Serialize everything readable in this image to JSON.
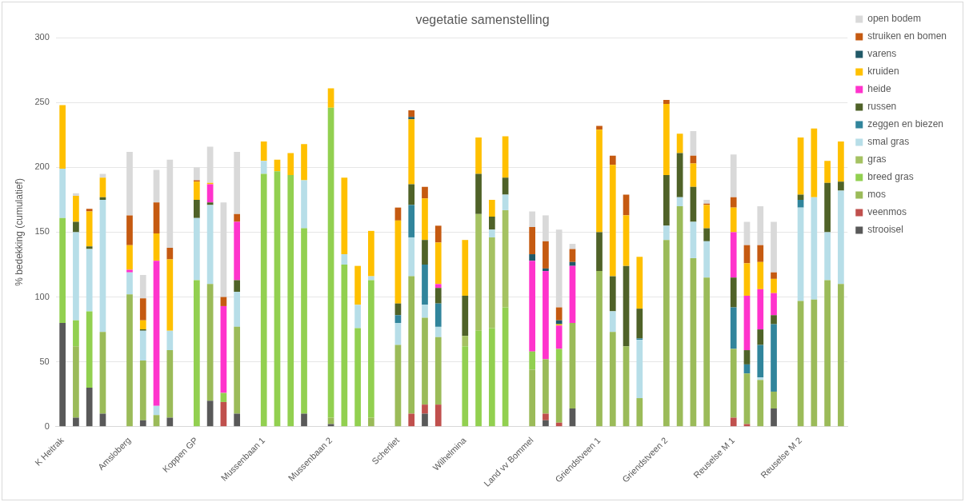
{
  "chart_data": {
    "type": "bar",
    "title": "vegetatie samenstelling",
    "ylabel": "% bedekking (cumulatief)",
    "stacked": true,
    "ylim": [
      0,
      300
    ],
    "yticks": [
      0,
      50,
      100,
      150,
      200,
      250,
      300
    ],
    "grid": "y",
    "legend": "right",
    "categories": [
      "K Heitrak",
      null,
      null,
      null,
      null,
      "Amsloberg",
      null,
      null,
      null,
      null,
      "Koppen GP",
      null,
      null,
      null,
      null,
      "Mussenbaan 1",
      null,
      null,
      null,
      null,
      "Mussenbaan 2",
      null,
      null,
      null,
      null,
      "Scherliet",
      null,
      null,
      null,
      null,
      "Wilhelmina",
      null,
      null,
      null,
      null,
      "Land vv Bommel",
      null,
      null,
      null,
      null,
      "Griendstveen 1",
      null,
      null,
      null,
      null,
      "Griendstveen 2",
      null,
      null,
      null,
      null,
      "Reuselse M 1",
      null,
      null,
      null,
      null,
      "Reuselse M 2",
      null,
      null,
      null
    ],
    "series": [
      {
        "name": "strooisel",
        "color": "#595959",
        "values": [
          80,
          7,
          30,
          10,
          null,
          null,
          5,
          null,
          7,
          null,
          null,
          20,
          null,
          10,
          null,
          null,
          null,
          null,
          10,
          null,
          2,
          null,
          null,
          null,
          null,
          null,
          null,
          10,
          null,
          null,
          null,
          null,
          null,
          null,
          null,
          null,
          5,
          null,
          14,
          null,
          null,
          null,
          null,
          null,
          null,
          null,
          null,
          null,
          null,
          null,
          null,
          null,
          null,
          14,
          null,
          null,
          null,
          null,
          null
        ]
      },
      {
        "name": "veenmos",
        "color": "#c0504d",
        "values": [
          null,
          null,
          null,
          null,
          null,
          null,
          null,
          null,
          null,
          null,
          null,
          null,
          19,
          null,
          null,
          null,
          null,
          null,
          null,
          null,
          null,
          null,
          null,
          null,
          null,
          null,
          10,
          7,
          17,
          null,
          null,
          null,
          null,
          null,
          null,
          null,
          5,
          3,
          null,
          null,
          null,
          null,
          null,
          null,
          null,
          null,
          null,
          null,
          null,
          null,
          7,
          2,
          null,
          null,
          null,
          null,
          null,
          null,
          null
        ]
      },
      {
        "name": "mos",
        "color": "#9bbb59",
        "values": [
          null,
          55,
          null,
          63,
          null,
          102,
          46,
          9,
          52,
          null,
          null,
          90,
          null,
          67,
          null,
          null,
          null,
          null,
          null,
          null,
          5,
          null,
          null,
          7,
          null,
          63,
          106,
          67,
          52,
          null,
          null,
          null,
          null,
          null,
          null,
          44,
          42,
          48,
          66,
          null,
          120,
          73,
          62,
          22,
          null,
          144,
          170,
          130,
          115,
          null,
          53,
          39,
          36,
          13,
          null,
          97,
          98,
          113,
          110
        ]
      },
      {
        "name": "breed gras",
        "color": "#92d050",
        "values": [
          81,
          20,
          59,
          null,
          null,
          null,
          null,
          null,
          null,
          null,
          113,
          null,
          7,
          null,
          null,
          195,
          197,
          194,
          143,
          null,
          239,
          125,
          76,
          106,
          null,
          null,
          null,
          null,
          null,
          null,
          62,
          74,
          76,
          92,
          null,
          14,
          null,
          9,
          null,
          null,
          null,
          null,
          null,
          null,
          null,
          null,
          null,
          null,
          null,
          null,
          null,
          null,
          null,
          null,
          null,
          null,
          null,
          null,
          null
        ]
      },
      {
        "name": "gras",
        "color": "#a5c262",
        "values": [
          null,
          null,
          null,
          null,
          null,
          null,
          null,
          null,
          null,
          null,
          null,
          null,
          null,
          null,
          null,
          null,
          null,
          null,
          null,
          null,
          null,
          null,
          null,
          null,
          null,
          null,
          null,
          null,
          null,
          null,
          8,
          90,
          70,
          75,
          null,
          null,
          null,
          null,
          null,
          null,
          null,
          null,
          null,
          null,
          null,
          null,
          null,
          null,
          null,
          null,
          null,
          null,
          null,
          null,
          null,
          null,
          null,
          null,
          null
        ]
      },
      {
        "name": "smal gras",
        "color": "#b7dee8",
        "values": [
          38,
          68,
          48,
          102,
          null,
          17,
          23,
          7,
          15,
          null,
          48,
          61,
          null,
          27,
          null,
          10,
          null,
          null,
          37,
          null,
          null,
          8,
          18,
          3,
          null,
          17,
          30,
          10,
          8,
          null,
          null,
          null,
          6,
          12,
          null,
          null,
          null,
          null,
          null,
          null,
          null,
          16,
          null,
          45,
          null,
          11,
          7,
          28,
          28,
          null,
          null,
          null,
          2,
          null,
          null,
          72,
          79,
          37,
          72
        ]
      },
      {
        "name": "zeggen en biezen",
        "color": "#31859c",
        "values": [
          null,
          null,
          null,
          null,
          null,
          null,
          null,
          null,
          null,
          null,
          null,
          null,
          null,
          null,
          null,
          null,
          null,
          null,
          null,
          null,
          null,
          null,
          null,
          null,
          null,
          6,
          25,
          31,
          18,
          null,
          null,
          null,
          null,
          null,
          null,
          null,
          null,
          null,
          null,
          null,
          null,
          null,
          null,
          1,
          null,
          null,
          null,
          null,
          null,
          null,
          32,
          7,
          25,
          52,
          null,
          6,
          null,
          null,
          null
        ]
      },
      {
        "name": "russen",
        "color": "#4f6228",
        "values": [
          null,
          8,
          2,
          2,
          null,
          null,
          1,
          null,
          null,
          null,
          14,
          2,
          null,
          9,
          null,
          null,
          null,
          null,
          null,
          null,
          null,
          null,
          null,
          null,
          null,
          9,
          16,
          19,
          12,
          null,
          31,
          31,
          10,
          13,
          null,
          null,
          null,
          null,
          null,
          null,
          30,
          27,
          62,
          23,
          null,
          39,
          34,
          27,
          10,
          null,
          23,
          11,
          12,
          7,
          null,
          4,
          null,
          38,
          7
        ]
      },
      {
        "name": "heide",
        "color": "#ff33cc",
        "values": [
          null,
          null,
          null,
          null,
          null,
          2,
          null,
          112,
          null,
          null,
          null,
          14,
          67,
          45,
          null,
          null,
          null,
          null,
          null,
          null,
          null,
          null,
          null,
          null,
          null,
          null,
          null,
          null,
          3,
          null,
          null,
          null,
          null,
          null,
          null,
          70,
          68,
          18,
          44,
          null,
          null,
          null,
          null,
          null,
          null,
          null,
          null,
          null,
          null,
          null,
          35,
          42,
          31,
          17,
          null,
          null,
          null,
          null,
          null
        ]
      },
      {
        "name": "kruiden",
        "color": "#ffc000",
        "values": [
          49,
          20,
          27,
          15,
          null,
          19,
          7,
          21,
          55,
          null,
          14,
          1,
          null,
          null,
          null,
          15,
          9,
          17,
          28,
          null,
          15,
          59,
          30,
          35,
          null,
          64,
          50,
          32,
          32,
          null,
          43,
          28,
          13,
          32,
          null,
          null,
          null,
          1,
          null,
          null,
          79,
          86,
          39,
          40,
          null,
          55,
          15,
          18,
          18,
          null,
          19,
          25,
          21,
          11,
          null,
          44,
          53,
          17,
          31
        ]
      },
      {
        "name": "varens",
        "color": "#215968",
        "values": [
          null,
          null,
          null,
          null,
          null,
          null,
          null,
          null,
          null,
          null,
          null,
          null,
          null,
          null,
          null,
          null,
          null,
          null,
          null,
          null,
          null,
          null,
          null,
          null,
          null,
          null,
          2,
          null,
          null,
          null,
          null,
          null,
          null,
          null,
          null,
          5,
          2,
          3,
          3,
          null,
          null,
          null,
          null,
          null,
          null,
          null,
          null,
          null,
          null,
          null,
          null,
          null,
          null,
          null,
          null,
          null,
          null,
          null,
          null
        ]
      },
      {
        "name": "struiken en bomen",
        "color": "#c55a11",
        "values": [
          null,
          null,
          2,
          null,
          null,
          23,
          17,
          24,
          9,
          null,
          1,
          null,
          7,
          6,
          null,
          null,
          null,
          null,
          null,
          null,
          null,
          null,
          null,
          null,
          null,
          10,
          5,
          9,
          13,
          null,
          null,
          null,
          null,
          null,
          null,
          21,
          21,
          10,
          10,
          null,
          3,
          7,
          16,
          null,
          null,
          3,
          null,
          6,
          1,
          null,
          8,
          14,
          13,
          5,
          null,
          null,
          null,
          null,
          null
        ]
      },
      {
        "name": "open bodem",
        "color": "#d9d9d9",
        "values": [
          null,
          2,
          null,
          3,
          null,
          49,
          18,
          25,
          68,
          null,
          10,
          28,
          73,
          48,
          null,
          null,
          null,
          null,
          null,
          null,
          null,
          null,
          null,
          null,
          null,
          null,
          null,
          null,
          null,
          null,
          null,
          null,
          null,
          null,
          null,
          12,
          20,
          60,
          4,
          null,
          null,
          null,
          null,
          null,
          null,
          null,
          null,
          19,
          3,
          null,
          33,
          18,
          30,
          39,
          null,
          null,
          null,
          null,
          null
        ]
      }
    ]
  }
}
